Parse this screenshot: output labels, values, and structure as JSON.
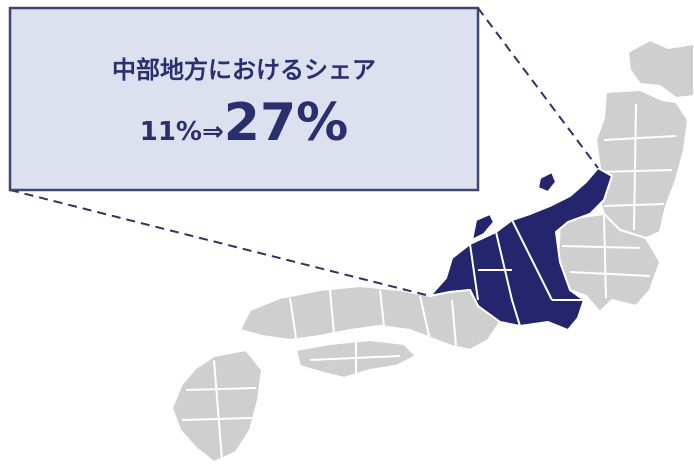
{
  "callout": {
    "title": "中部地方におけるシェア",
    "before": "11%",
    "arrow": "⇒",
    "after": "27%"
  }
}
